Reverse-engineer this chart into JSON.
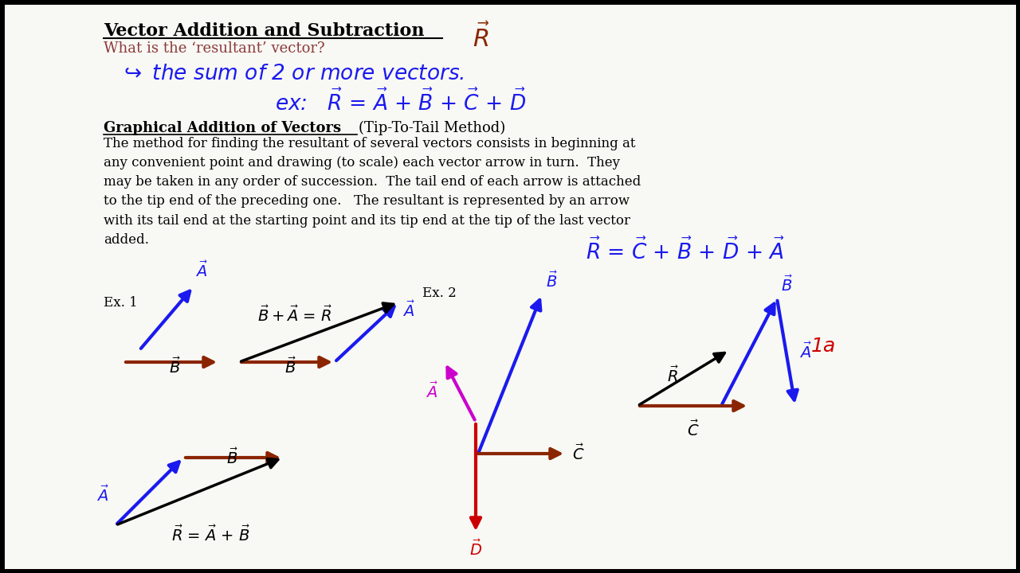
{
  "bg_color": "#f8f8f4",
  "title_text": "Vector Addition and Subtraction",
  "subtitle_text": "What is the ‘resultant’ vector?",
  "graphical_title": "Graphical Addition of Vectors",
  "graphical_subtitle": "(Tip-To-Tail Method)",
  "body_paragraph": "The method for finding the resultant of several vectors consists in beginning at\nany convenient point and drawing (to scale) each vector arrow in turn.  They\nmay be taken in any order of succession.  The tail end of each arrow is attached\nto the tip end of the preceding one.   The resultant is represented by an arrow\nwith its tail end at the starting point and its tip end at the tip of the last vector\nadded.",
  "colors": {
    "black": "#000000",
    "blue": "#1a1aee",
    "brown": "#8B2500",
    "red": "#cc0000",
    "magenta": "#cc00cc",
    "subtitle_color": "#8B3A3A",
    "handwriting_blue": "#1a1aee"
  }
}
